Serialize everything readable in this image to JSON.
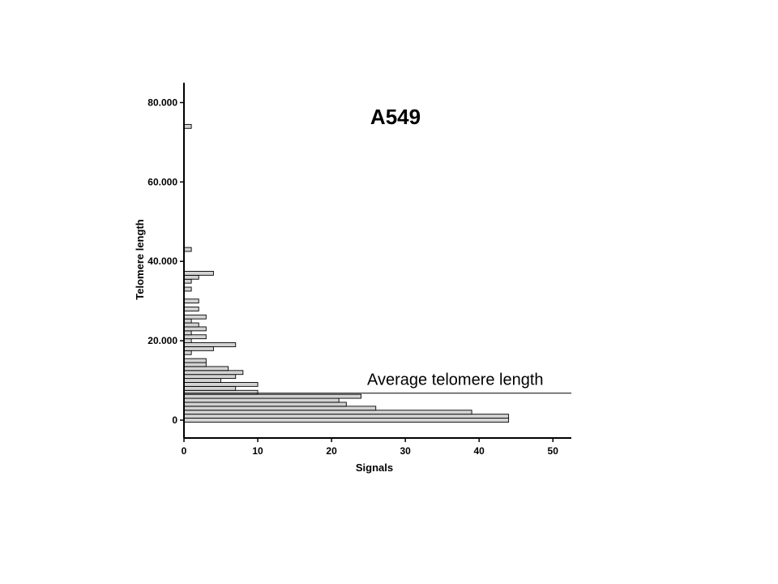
{
  "chart_data": {
    "type": "bar",
    "orientation": "horizontal",
    "title": "A549",
    "xlabel": "Signals",
    "ylabel": "Telomere length",
    "xlim": [
      0,
      52.5
    ],
    "ylim": [
      -4500,
      85000
    ],
    "xticks": [
      0,
      10,
      20,
      30,
      40,
      50
    ],
    "xtick_labels": [
      "0",
      "10",
      "20",
      "30",
      "40",
      "50"
    ],
    "yticks": [
      0,
      20000,
      40000,
      60000,
      80000
    ],
    "ytick_labels": [
      "0",
      "20.000",
      "40.000",
      "60.000",
      "80.000"
    ],
    "bin_width": 1000,
    "bins": [
      {
        "y": 0,
        "value": 44
      },
      {
        "y": 1000,
        "value": 44
      },
      {
        "y": 2000,
        "value": 39
      },
      {
        "y": 3000,
        "value": 26
      },
      {
        "y": 4000,
        "value": 22
      },
      {
        "y": 5000,
        "value": 21
      },
      {
        "y": 6000,
        "value": 24
      },
      {
        "y": 7000,
        "value": 10
      },
      {
        "y": 8000,
        "value": 7
      },
      {
        "y": 9000,
        "value": 10
      },
      {
        "y": 10000,
        "value": 5
      },
      {
        "y": 11000,
        "value": 7
      },
      {
        "y": 12000,
        "value": 8
      },
      {
        "y": 13000,
        "value": 6
      },
      {
        "y": 14000,
        "value": 3
      },
      {
        "y": 15000,
        "value": 3
      },
      {
        "y": 17000,
        "value": 1
      },
      {
        "y": 18000,
        "value": 4
      },
      {
        "y": 19000,
        "value": 7
      },
      {
        "y": 20000,
        "value": 1
      },
      {
        "y": 21000,
        "value": 3
      },
      {
        "y": 22000,
        "value": 1
      },
      {
        "y": 23000,
        "value": 3
      },
      {
        "y": 24000,
        "value": 2
      },
      {
        "y": 25000,
        "value": 1
      },
      {
        "y": 26000,
        "value": 3
      },
      {
        "y": 28000,
        "value": 2
      },
      {
        "y": 30000,
        "value": 2
      },
      {
        "y": 33000,
        "value": 1
      },
      {
        "y": 35000,
        "value": 1
      },
      {
        "y": 36000,
        "value": 2
      },
      {
        "y": 37000,
        "value": 4
      },
      {
        "y": 43000,
        "value": 1
      },
      {
        "y": 74000,
        "value": 1
      }
    ],
    "reference_line": {
      "y": 6800,
      "label": "Average telomere length"
    },
    "bar_color": "#d3d3d3",
    "grid": false,
    "legend": "none"
  }
}
